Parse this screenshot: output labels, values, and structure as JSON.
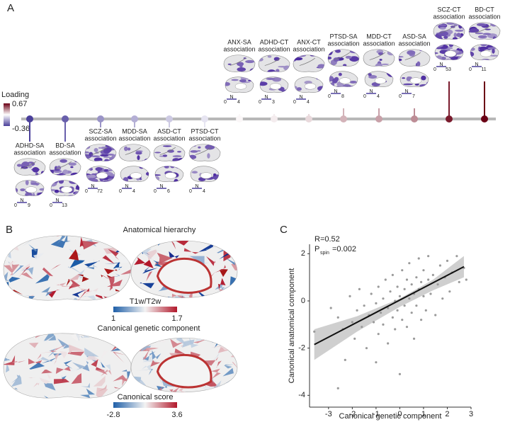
{
  "panel_labels": [
    "A",
    "B",
    "C"
  ],
  "panel_a": {
    "legend_title": "Loading",
    "legend_max": 0.67,
    "legend_min": -0.36,
    "n_label": "N",
    "n_min": 0,
    "items": [
      {
        "name": "ADHD-SA",
        "line2": "association",
        "loading": -0.36,
        "n": 9
      },
      {
        "name": "BD-SA",
        "line2": "association",
        "loading": -0.3,
        "n": 13
      },
      {
        "name": "SCZ-SA",
        "line2": "association",
        "loading": -0.2,
        "n": 72
      },
      {
        "name": "MDD-SA",
        "line2": "association",
        "loading": -0.15,
        "n": 4
      },
      {
        "name": "ASD-CT",
        "line2": "association",
        "loading": -0.1,
        "n": 6
      },
      {
        "name": "PTSD-CT",
        "line2": "association",
        "loading": -0.05,
        "n": 4
      },
      {
        "name": "ANX-SA",
        "line2": "association",
        "loading": 0.02,
        "n": 4
      },
      {
        "name": "ADHD-CT",
        "line2": "association",
        "loading": 0.05,
        "n": 3
      },
      {
        "name": "ANX-CT",
        "line2": "association",
        "loading": 0.1,
        "n": 4
      },
      {
        "name": "PTSD-SA",
        "line2": "association",
        "loading": 0.2,
        "n": 8
      },
      {
        "name": "MDD-CT",
        "line2": "association",
        "loading": 0.25,
        "n": 4
      },
      {
        "name": "ASD-SA",
        "line2": "association",
        "loading": 0.3,
        "n": 7
      },
      {
        "name": "SCZ-CT",
        "line2": "association",
        "loading": 0.6,
        "n": 53
      },
      {
        "name": "BD-CT",
        "line2": "association",
        "loading": 0.67,
        "n": 11
      }
    ]
  },
  "panel_b": {
    "top_title": "Anatomical hierarchy",
    "top_bar_title": "T1w/T2w",
    "top_min": 1,
    "top_max": 1.7,
    "bottom_title": "Canonical genetic component",
    "bottom_bar_title": "Canonical score",
    "bottom_min": -2.8,
    "bottom_max": 3.6
  },
  "chart_data": {
    "type": "scatter",
    "x_label": "Canonical genetic component",
    "y_label": "Canonical anatomical component",
    "annotation_r": "R=0.52",
    "annotation_p": "P",
    "annotation_p_sub": "spin",
    "annotation_p_value": "=0.002",
    "xlim": [
      -3.8,
      3.0
    ],
    "ylim": [
      -4.5,
      2.4
    ],
    "xticks": [
      -3,
      -2,
      -1,
      0,
      1,
      2,
      3
    ],
    "yticks": [
      -4,
      -2,
      0,
      2
    ],
    "color": "#9a9a9a",
    "x": [
      -3.6,
      -2.9,
      -2.6,
      -2.4,
      -2.3,
      -2.1,
      -2.0,
      -1.9,
      -1.8,
      -1.7,
      -1.6,
      -1.5,
      -1.4,
      -1.3,
      -1.2,
      -1.1,
      -1.0,
      -0.9,
      -0.9,
      -0.8,
      -0.7,
      -0.7,
      -0.6,
      -0.5,
      -0.5,
      -0.4,
      -0.3,
      -0.3,
      -0.2,
      -0.2,
      -0.1,
      -0.1,
      0.0,
      0.0,
      0.1,
      0.1,
      0.2,
      0.2,
      0.3,
      0.3,
      0.4,
      0.4,
      0.5,
      0.5,
      0.6,
      0.6,
      0.7,
      0.7,
      0.8,
      0.8,
      0.9,
      0.9,
      1.0,
      1.0,
      1.1,
      1.2,
      1.2,
      1.3,
      1.4,
      1.5,
      1.6,
      1.7,
      1.8,
      1.9,
      2.0,
      2.1,
      2.2,
      2.4,
      2.5,
      2.7,
      2.8,
      -1.0,
      -2.6
    ],
    "values": [
      -1.3,
      -0.3,
      -0.7,
      -1.2,
      -2.5,
      0.2,
      -0.9,
      -1.6,
      -0.4,
      0.5,
      -1.1,
      -0.2,
      -2.0,
      -0.6,
      0.3,
      -0.9,
      -0.1,
      -1.4,
      0.6,
      -0.5,
      0.1,
      -1.0,
      0.9,
      -0.3,
      -1.8,
      0.4,
      -0.7,
      1.1,
      0.0,
      -1.2,
      0.6,
      -0.4,
      0.2,
      -3.1,
      1.3,
      -0.8,
      0.5,
      -0.2,
      0.9,
      -1.1,
      0.1,
      1.6,
      -0.5,
      0.7,
      0.3,
      -1.6,
      1.0,
      -0.2,
      0.5,
      1.8,
      -0.8,
      0.8,
      0.2,
      1.3,
      -0.4,
      0.9,
      1.9,
      0.3,
      1.1,
      -0.6,
      0.7,
      1.5,
      0.1,
      1.0,
      1.7,
      0.4,
      1.2,
      1.9,
      0.8,
      1.4,
      0.9,
      -2.6,
      -3.7
    ],
    "fit_line": {
      "x": [
        -3.6,
        2.7
      ],
      "values": [
        -1.85,
        1.45
      ],
      "color": "#111111"
    },
    "band": {
      "x": [
        -3.6,
        -1.8,
        0,
        1.4,
        2.7
      ],
      "upper": [
        -1.2,
        -0.65,
        0.1,
        0.9,
        1.9
      ],
      "lower": [
        -2.5,
        -1.3,
        -0.25,
        0.45,
        1.0
      ],
      "color": "#cfcfcf"
    }
  }
}
